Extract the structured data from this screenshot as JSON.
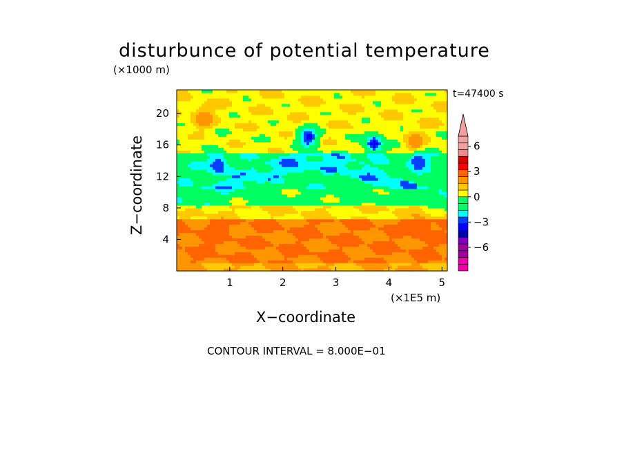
{
  "chart_data": {
    "type": "heatmap",
    "title": "disturbunce of potential temperature",
    "time_label": "t=47400 s",
    "xlabel": "X−coordinate",
    "ylabel": "Z−coordinate",
    "x_unit": "(×1E5 m)",
    "y_unit": "(×1000 m)",
    "xlim": [
      0,
      5.1
    ],
    "ylim": [
      0,
      23
    ],
    "x_ticks": [
      1,
      2,
      3,
      4,
      5
    ],
    "y_ticks": [
      4,
      8,
      12,
      16,
      20
    ],
    "x_tick_labels": [
      "1",
      "2",
      "3",
      "4",
      "5"
    ],
    "y_tick_labels": [
      "4",
      "8",
      "12",
      "16",
      "20"
    ],
    "contour_interval_label": "CONTOUR INTERVAL = 8.000E−01",
    "colorbar": {
      "levels": [
        -8.8,
        -8.0,
        -7.2,
        -6.4,
        -5.6,
        -4.8,
        -4.0,
        -3.2,
        -2.4,
        -1.6,
        -0.8,
        0.0,
        0.8,
        1.6,
        2.4,
        3.2,
        4.0,
        4.8,
        5.6,
        6.4
      ],
      "colors": [
        "#f000a8",
        "#f000a8",
        "#a0009c",
        "#a0009c",
        "#8000c0",
        "#0000a8",
        "#0000ff",
        "#0040ff",
        "#00ffff",
        "#00ff60",
        "#00ff60",
        "#ffff00",
        "#ffc800",
        "#ff9600",
        "#ff6400",
        "#ff0000",
        "#d80000",
        "#f08888",
        "#f4a0a0",
        "#f4a0a0"
      ],
      "tick_values": [
        6,
        3,
        0,
        -3,
        -6
      ],
      "tick_labels": [
        "6",
        "3",
        "0",
        "−3",
        "−6"
      ],
      "extend": "both"
    },
    "field_bands": [
      {
        "z_range": [
          0,
          1
        ],
        "value": 1.6,
        "note": "surface yellow-orange"
      },
      {
        "z_range": [
          1,
          6.5
        ],
        "value": 2.4
      },
      {
        "z_range": [
          6.5,
          8.5
        ],
        "value": 0.8
      },
      {
        "z_range": [
          8.5,
          10.5
        ],
        "value": -0.4
      },
      {
        "z_range": [
          10.5,
          15
        ],
        "value": -1.2
      },
      {
        "z_range": [
          15,
          18
        ],
        "value": 0.4
      },
      {
        "z_range": [
          18,
          23
        ],
        "value": 0.6
      }
    ],
    "features": [
      {
        "x": 0.78,
        "z": 13.5,
        "value": -3.2
      },
      {
        "x": 2.48,
        "z": 17.0,
        "value": -3.6
      },
      {
        "x": 3.72,
        "z": 16.2,
        "value": -3.6
      },
      {
        "x": 4.55,
        "z": 14.2,
        "value": -3.2
      },
      {
        "x": 0.75,
        "z": 5.0,
        "value": 3.2
      },
      {
        "x": 4.6,
        "z": 5.5,
        "value": 3.2
      },
      {
        "x": 4.5,
        "z": 16.5,
        "value": 2.4
      },
      {
        "x": 0.5,
        "z": 19.5,
        "value": 2.4
      }
    ]
  }
}
